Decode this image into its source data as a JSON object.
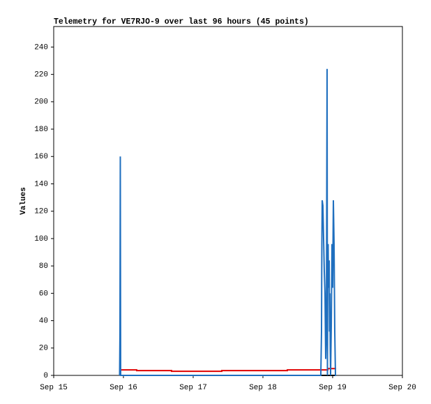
{
  "chart_data": {
    "type": "line",
    "title": "Telemetry for VE7RJO-9 over last 96 hours (45 points)",
    "ylabel": "Values",
    "xlim": [
      15,
      20
    ],
    "xticks": [
      {
        "value": 15,
        "label": "Sep 15"
      },
      {
        "value": 16,
        "label": "Sep 16"
      },
      {
        "value": 17,
        "label": "Sep 17"
      },
      {
        "value": 18,
        "label": "Sep 18"
      },
      {
        "value": 19,
        "label": "Sep 19"
      },
      {
        "value": 20,
        "label": "Sep 20"
      }
    ],
    "ylim": [
      0,
      255
    ],
    "yticks": [
      0,
      20,
      40,
      60,
      80,
      100,
      120,
      140,
      160,
      180,
      200,
      220,
      240
    ],
    "series": [
      {
        "color": "#000000",
        "x": [
          15.95,
          19.05
        ],
        "values": [
          0,
          0
        ]
      },
      {
        "color": "#e00000",
        "x": [
          15.95,
          16.19,
          16.19,
          16.69,
          16.69,
          17.41,
          17.41,
          18.35,
          18.35,
          18.93,
          18.93,
          19.05
        ],
        "values": [
          4,
          4,
          3.5,
          3.5,
          3,
          3,
          3.5,
          3.5,
          4,
          4,
          5,
          5
        ]
      },
      {
        "color": "#1f6fbf",
        "x": [
          15.945,
          15.95,
          15.955,
          15.96,
          18.83,
          18.84,
          18.845,
          18.85,
          18.86,
          18.865,
          18.87,
          18.88,
          18.89,
          18.9,
          18.91,
          18.92,
          18.925,
          18.93,
          18.935,
          18.94,
          18.95,
          18.955,
          18.96,
          18.965,
          18.97,
          18.98,
          18.99,
          19.0,
          19.01,
          19.02,
          19.03,
          19.04,
          19.05
        ],
        "values": [
          0,
          32,
          160,
          0,
          0,
          32,
          96,
          128,
          124,
          112,
          100,
          76,
          60,
          12,
          36,
          224,
          0,
          80,
          96,
          64,
          84,
          32,
          60,
          20,
          0,
          36,
          96,
          64,
          128,
          96,
          32,
          0,
          0
        ]
      }
    ]
  }
}
